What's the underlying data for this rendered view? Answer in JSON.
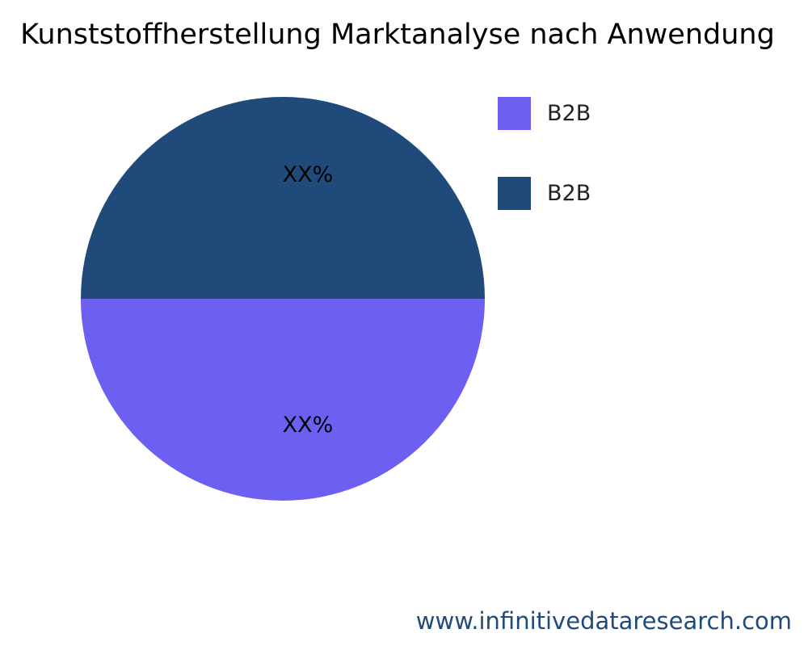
{
  "chart_data": {
    "type": "pie",
    "title": "Kunststoffherstellung Marktanalyse nach Anwendung",
    "slices": [
      {
        "label": "B2B",
        "value": 50,
        "display": "XX%",
        "color": "#6c5ff2"
      },
      {
        "label": "B2B",
        "value": 50,
        "display": "XX%",
        "color": "#1f4a7a"
      }
    ],
    "legend_position": "top-right"
  },
  "footer": {
    "website": "www.infinitivedataresearch.com"
  }
}
